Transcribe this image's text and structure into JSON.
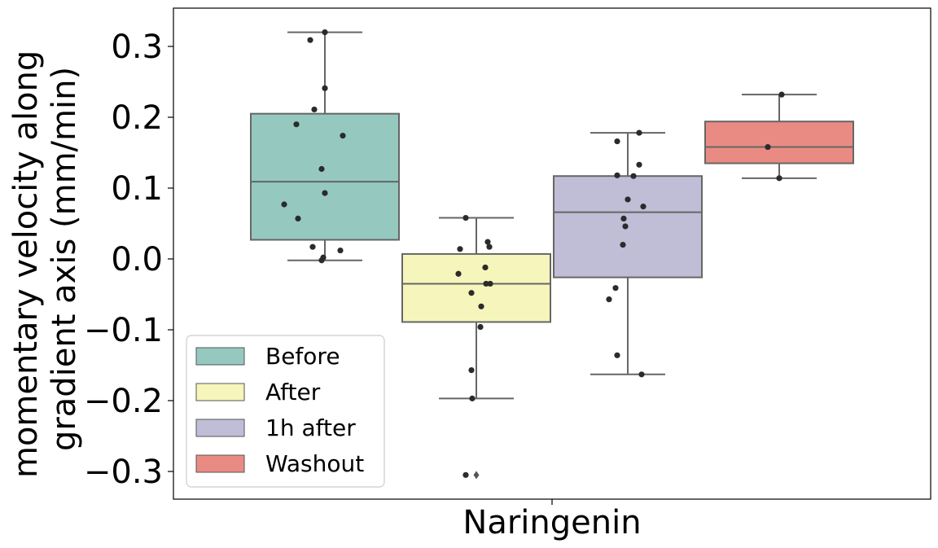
{
  "chart_data": {
    "type": "box",
    "xlabel": "Naringenin",
    "ylabel_lines": [
      "momentary velocity along",
      "gradient axis (mm/min)"
    ],
    "ylim": [
      -0.34,
      0.355
    ],
    "yticks": [
      0.3,
      0.2,
      0.1,
      0.0,
      -0.1,
      -0.2,
      -0.3
    ],
    "ytick_labels": [
      "0.3",
      "0.2",
      "0.1",
      "0.0",
      "−0.1",
      "−0.2",
      "−0.3"
    ],
    "grid": false,
    "legend_position": "lower-left",
    "series": [
      {
        "name": "Before",
        "color": "#95c9bf",
        "q1": 0.027,
        "median": 0.109,
        "q3": 0.205,
        "whisker_low": -0.002,
        "whisker_high": 0.32,
        "fliers": [],
        "points": [
          0.32,
          0.309,
          0.241,
          0.211,
          0.19,
          0.174,
          0.127,
          0.093,
          0.077,
          0.057,
          0.017,
          0.012,
          0.002,
          -0.002
        ]
      },
      {
        "name": "After",
        "color": "#f6f5bb",
        "q1": -0.089,
        "median": -0.035,
        "q3": 0.007,
        "whisker_low": -0.197,
        "whisker_high": 0.058,
        "fliers": [
          -0.305
        ],
        "points": [
          0.058,
          0.024,
          0.017,
          0.014,
          -0.012,
          -0.021,
          -0.035,
          -0.035,
          -0.048,
          -0.067,
          -0.096,
          -0.157,
          -0.197,
          -0.305
        ]
      },
      {
        "name": "1h after",
        "color": "#c0bdd6",
        "q1": -0.026,
        "median": 0.066,
        "q3": 0.117,
        "whisker_low": -0.163,
        "whisker_high": 0.178,
        "fliers": [],
        "points": [
          0.178,
          0.166,
          0.133,
          0.118,
          0.117,
          0.084,
          0.074,
          0.057,
          0.046,
          0.02,
          -0.041,
          -0.057,
          -0.136,
          -0.163
        ]
      },
      {
        "name": "Washout",
        "color": "#e98b82",
        "q1": 0.135,
        "median": 0.158,
        "q3": 0.194,
        "whisker_low": 0.114,
        "whisker_high": 0.232,
        "fliers": [],
        "points": [
          0.232,
          0.158,
          0.114
        ]
      }
    ]
  }
}
